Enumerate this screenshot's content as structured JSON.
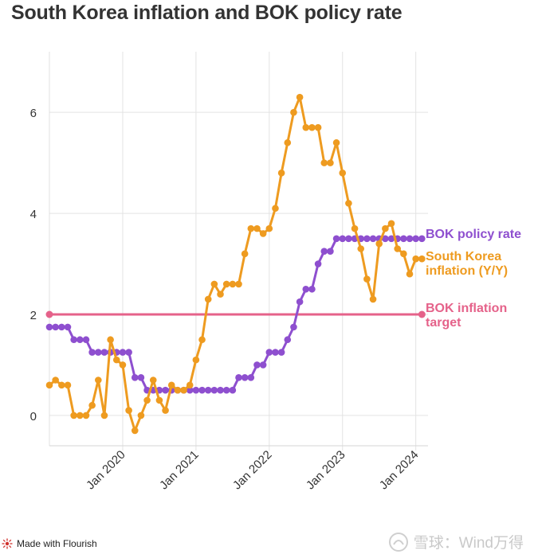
{
  "title": "South Korea inflation and BOK policy rate",
  "footer": {
    "made_with": "Made with Flourish",
    "watermark": "雪球：Wind万得"
  },
  "chart_data": {
    "type": "line",
    "title": "South Korea inflation and BOK policy rate",
    "xlabel": "",
    "ylabel": "",
    "ylim": [
      -0.6,
      7.2
    ],
    "xlim": [
      "2019-01",
      "2024-03"
    ],
    "yticks": [
      0,
      2,
      4,
      6
    ],
    "xticks": [
      {
        "label": "Jan 2020",
        "date": "2020-01"
      },
      {
        "label": "Jan 2021",
        "date": "2021-01"
      },
      {
        "label": "Jan 2022",
        "date": "2022-01"
      },
      {
        "label": "Jan 2023",
        "date": "2023-01"
      },
      {
        "label": "Jan 2024",
        "date": "2024-01"
      }
    ],
    "x": [
      "2019-01",
      "2019-02",
      "2019-03",
      "2019-04",
      "2019-05",
      "2019-06",
      "2019-07",
      "2019-08",
      "2019-09",
      "2019-10",
      "2019-11",
      "2019-12",
      "2020-01",
      "2020-02",
      "2020-03",
      "2020-04",
      "2020-05",
      "2020-06",
      "2020-07",
      "2020-08",
      "2020-09",
      "2020-10",
      "2020-11",
      "2020-12",
      "2021-01",
      "2021-02",
      "2021-03",
      "2021-04",
      "2021-05",
      "2021-06",
      "2021-07",
      "2021-08",
      "2021-09",
      "2021-10",
      "2021-11",
      "2021-12",
      "2022-01",
      "2022-02",
      "2022-03",
      "2022-04",
      "2022-05",
      "2022-06",
      "2022-07",
      "2022-08",
      "2022-09",
      "2022-10",
      "2022-11",
      "2022-12",
      "2023-01",
      "2023-02",
      "2023-03",
      "2023-04",
      "2023-05",
      "2023-06",
      "2023-07",
      "2023-08",
      "2023-09",
      "2023-10",
      "2023-11",
      "2023-12",
      "2024-01",
      "2024-02"
    ],
    "series": [
      {
        "name": "South Korea inflation (Y/Y)",
        "label": [
          "South Korea",
          "inflation (Y/Y)"
        ],
        "color": "#ee9b20",
        "values": [
          0.6,
          0.7,
          0.6,
          0.6,
          0.0,
          0.0,
          0.0,
          0.2,
          0.7,
          0.0,
          1.5,
          1.1,
          1.0,
          0.1,
          -0.3,
          0.0,
          0.3,
          0.7,
          0.3,
          0.1,
          0.6,
          0.5,
          0.5,
          0.6,
          1.1,
          1.5,
          2.3,
          2.6,
          2.4,
          2.6,
          2.6,
          2.6,
          3.2,
          3.7,
          3.7,
          3.6,
          3.7,
          4.1,
          4.8,
          5.4,
          6.0,
          6.3,
          5.7,
          5.7,
          5.7,
          5.0,
          5.0,
          5.4,
          4.8,
          4.2,
          3.7,
          3.3,
          2.7,
          2.3,
          3.4,
          3.7,
          3.8,
          3.3,
          3.2,
          2.8,
          3.1,
          3.1
        ]
      },
      {
        "name": "BOK policy rate",
        "label": [
          "BOK policy rate"
        ],
        "color": "#8e4fcf",
        "values": [
          1.75,
          1.75,
          1.75,
          1.75,
          1.5,
          1.5,
          1.5,
          1.25,
          1.25,
          1.25,
          1.25,
          1.25,
          1.25,
          1.25,
          0.75,
          0.75,
          0.5,
          0.5,
          0.5,
          0.5,
          0.5,
          0.5,
          0.5,
          0.5,
          0.5,
          0.5,
          0.5,
          0.5,
          0.5,
          0.5,
          0.5,
          0.75,
          0.75,
          0.75,
          1.0,
          1.0,
          1.25,
          1.25,
          1.25,
          1.5,
          1.75,
          2.25,
          2.5,
          2.5,
          3.0,
          3.25,
          3.25,
          3.5,
          3.5,
          3.5,
          3.5,
          3.5,
          3.5,
          3.5,
          3.5,
          3.5,
          3.5,
          3.5,
          3.5,
          3.5,
          3.5,
          3.5
        ]
      }
    ],
    "reference_lines": [
      {
        "name": "BOK inflation target",
        "label": [
          "BOK inflation",
          "target"
        ],
        "value": 2,
        "color": "#e5628a"
      }
    ]
  }
}
